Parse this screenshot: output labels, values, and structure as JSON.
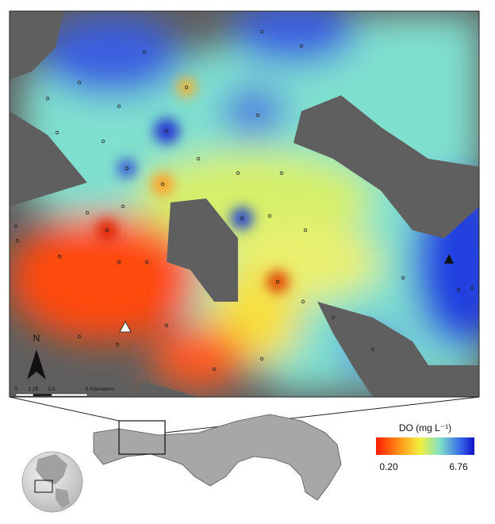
{
  "map": {
    "north_label": "N",
    "scale_bar": {
      "labels": [
        "0",
        "1.25",
        "2.5",
        "5 Kilometers"
      ]
    }
  },
  "legend": {
    "title": "DO (mg L⁻¹)",
    "min_label": "0.20",
    "max_label": "6.76"
  }
}
